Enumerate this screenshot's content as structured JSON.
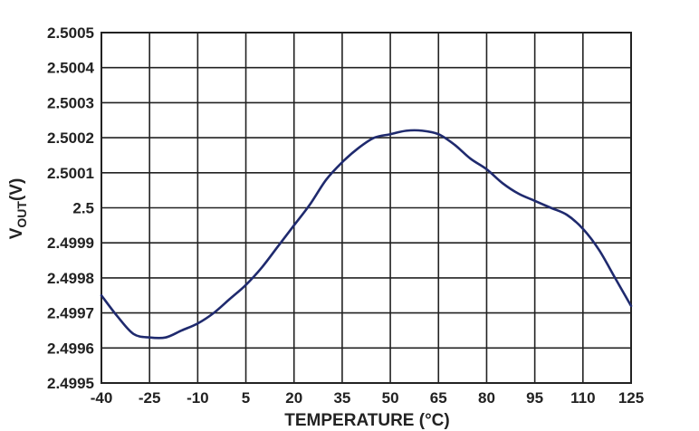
{
  "chart_data": {
    "type": "line",
    "title": "",
    "xlabel": "TEMPERATURE (°C)",
    "ylabel": {
      "main": "V",
      "sub": "OUT",
      "unit": "(V)"
    },
    "xlim": [
      -40,
      125
    ],
    "ylim": [
      2.4995,
      2.5005
    ],
    "x_ticks": [
      "-40",
      "-25",
      "-10",
      "5",
      "20",
      "35",
      "50",
      "65",
      "80",
      "95",
      "110",
      "125"
    ],
    "y_ticks": [
      "2.4995",
      "2.4996",
      "2.4997",
      "2.4998",
      "2.4999",
      "2.5",
      "2.5001",
      "2.5002",
      "2.5003",
      "2.5004",
      "2.5005"
    ],
    "grid": true,
    "series_color": "#1f2a6e",
    "series": [
      {
        "x": [
          -40,
          -35,
          -30,
          -25,
          -20,
          -15,
          -10,
          -5,
          0,
          5,
          10,
          15,
          20,
          25,
          30,
          35,
          40,
          45,
          50,
          55,
          60,
          65,
          70,
          75,
          80,
          85,
          90,
          95,
          100,
          105,
          110,
          115,
          120,
          125
        ],
        "y": [
          2.49975,
          2.49969,
          2.49964,
          2.49963,
          2.49963,
          2.49965,
          2.49967,
          2.4997,
          2.49974,
          2.49978,
          2.49983,
          2.49989,
          2.49995,
          2.50001,
          2.50008,
          2.50013,
          2.50017,
          2.5002,
          2.50021,
          2.50022,
          2.50022,
          2.50021,
          2.50018,
          2.50014,
          2.50011,
          2.50007,
          2.50004,
          2.50002,
          2.5,
          2.49998,
          2.49994,
          2.49988,
          2.4998,
          2.49972
        ]
      }
    ]
  }
}
